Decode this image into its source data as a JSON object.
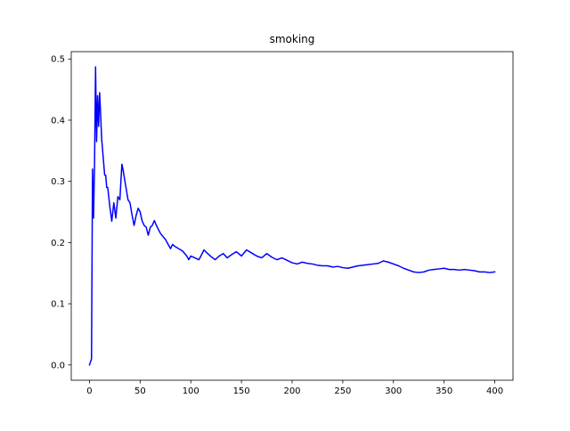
{
  "chart_data": {
    "type": "line",
    "title": "smoking",
    "xlabel": "",
    "ylabel": "",
    "xlim": [
      -18,
      418
    ],
    "ylim": [
      -0.025,
      0.512
    ],
    "xticks": [
      0,
      50,
      100,
      150,
      200,
      250,
      300,
      350,
      400
    ],
    "yticks": [
      0.0,
      0.1,
      0.2,
      0.3,
      0.4,
      0.5
    ],
    "x_tick_labels": [
      "0",
      "50",
      "100",
      "150",
      "200",
      "250",
      "300",
      "350",
      "400"
    ],
    "y_tick_labels": [
      "0.0",
      "0.1",
      "0.2",
      "0.3",
      "0.4",
      "0.5"
    ],
    "grid": false,
    "legend": "none",
    "line_color": "#0000ff",
    "series": [
      {
        "x": [
          0,
          2,
          3,
          4,
          5,
          6,
          7,
          8,
          9,
          10,
          11,
          12,
          13,
          14,
          15,
          16,
          17,
          18,
          20,
          22,
          24,
          26,
          28,
          30,
          31,
          32,
          33,
          34,
          36,
          38,
          40,
          42,
          44,
          46,
          48,
          50,
          52,
          54,
          56,
          58,
          60,
          62,
          64,
          66,
          70,
          75,
          80,
          82,
          84,
          88,
          92,
          96,
          98,
          100,
          104,
          108,
          110,
          113,
          116,
          120,
          124,
          128,
          132,
          136,
          140,
          145,
          150,
          155,
          160,
          165,
          170,
          175,
          180,
          185,
          190,
          195,
          200,
          205,
          210,
          215,
          220,
          225,
          230,
          235,
          240,
          245,
          250,
          255,
          260,
          265,
          270,
          275,
          280,
          285,
          290,
          295,
          300,
          305,
          310,
          315,
          320,
          325,
          330,
          335,
          340,
          345,
          350,
          355,
          360,
          365,
          370,
          375,
          380,
          385,
          390,
          395,
          400
        ],
        "values": [
          0.0,
          0.01,
          0.32,
          0.24,
          0.33,
          0.487,
          0.365,
          0.44,
          0.39,
          0.445,
          0.41,
          0.37,
          0.35,
          0.33,
          0.31,
          0.31,
          0.29,
          0.29,
          0.26,
          0.235,
          0.265,
          0.24,
          0.275,
          0.27,
          0.3,
          0.328,
          0.32,
          0.31,
          0.29,
          0.27,
          0.265,
          0.245,
          0.228,
          0.244,
          0.256,
          0.25,
          0.235,
          0.228,
          0.225,
          0.212,
          0.225,
          0.228,
          0.236,
          0.228,
          0.215,
          0.205,
          0.19,
          0.197,
          0.194,
          0.19,
          0.186,
          0.178,
          0.172,
          0.178,
          0.175,
          0.172,
          0.178,
          0.188,
          0.183,
          0.177,
          0.172,
          0.178,
          0.182,
          0.175,
          0.18,
          0.185,
          0.178,
          0.188,
          0.183,
          0.178,
          0.175,
          0.182,
          0.176,
          0.172,
          0.175,
          0.171,
          0.167,
          0.165,
          0.168,
          0.166,
          0.165,
          0.163,
          0.162,
          0.162,
          0.16,
          0.161,
          0.159,
          0.158,
          0.16,
          0.162,
          0.163,
          0.164,
          0.165,
          0.166,
          0.17,
          0.168,
          0.165,
          0.162,
          0.158,
          0.155,
          0.152,
          0.151,
          0.152,
          0.155,
          0.156,
          0.157,
          0.158,
          0.156,
          0.156,
          0.155,
          0.156,
          0.155,
          0.154,
          0.152,
          0.152,
          0.151,
          0.152
        ]
      }
    ]
  }
}
